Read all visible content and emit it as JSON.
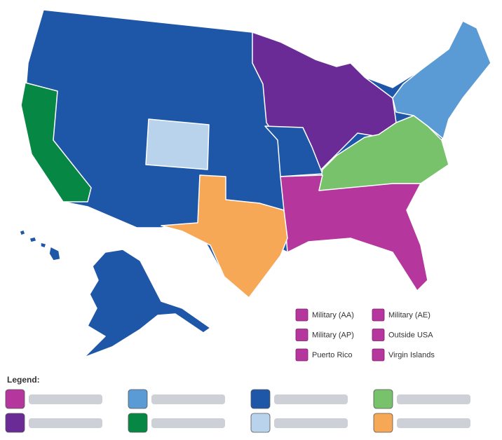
{
  "territories": [
    {
      "label": "Military (AA)",
      "color": "#b5379e"
    },
    {
      "label": "Military (AE)",
      "color": "#b5379e"
    },
    {
      "label": "Military (AP)",
      "color": "#b5379e"
    },
    {
      "label": "Outside USA",
      "color": "#b5379e"
    },
    {
      "label": "Puerto Rico",
      "color": "#b5379e"
    },
    {
      "label": "Virgin Islands",
      "color": "#b5379e"
    }
  ],
  "legend": {
    "title": "Legend:",
    "swatches": [
      {
        "color": "#b5379e"
      },
      {
        "color": "#5b9bd5"
      },
      {
        "color": "#1f57a8"
      },
      {
        "color": "#77c26a"
      },
      {
        "color": "#6a2b97"
      },
      {
        "color": "#068844"
      },
      {
        "color": "#b9d3ec"
      },
      {
        "color": "#f7a857"
      }
    ]
  }
}
